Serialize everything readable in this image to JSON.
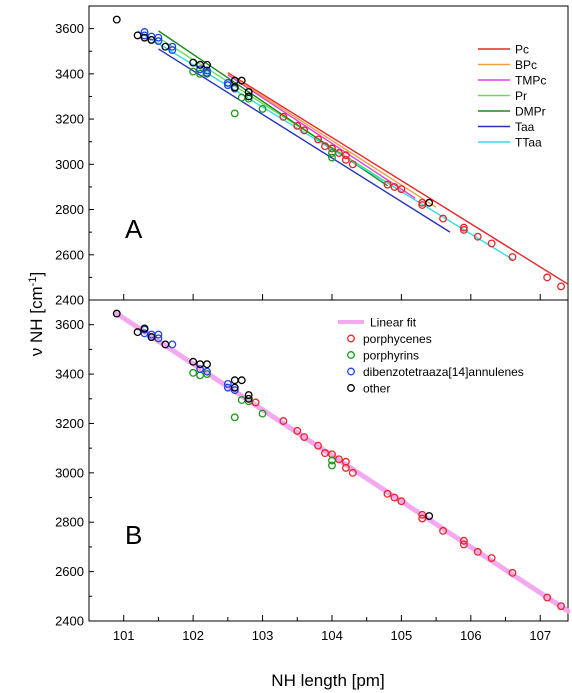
{
  "chart_data": [
    {
      "type": "line",
      "panel_label": "A",
      "xlim": [
        100.5,
        107.4
      ],
      "ylim": [
        2400,
        3700
      ],
      "grid": false,
      "legend_position": "top-right",
      "series": [
        {
          "name": "Pc",
          "color": "#e8262a",
          "x": [
            102.5,
            107.4
          ],
          "y": [
            3405,
            2470
          ]
        },
        {
          "name": "BPc",
          "color": "#f5a040",
          "x": [
            102.5,
            105.5
          ],
          "y": [
            3400,
            2810
          ]
        },
        {
          "name": "TMPc",
          "color": "#e040e0",
          "x": [
            102.5,
            105.2
          ],
          "y": [
            3395,
            2850
          ]
        },
        {
          "name": "Pr",
          "color": "#66dd55",
          "x": [
            101.5,
            105.0
          ],
          "y": [
            3560,
            2880
          ]
        },
        {
          "name": "DMPr",
          "color": "#1a8a1a",
          "x": [
            101.5,
            104.8
          ],
          "y": [
            3590,
            2905
          ]
        },
        {
          "name": "Taa",
          "color": "#2233bb",
          "x": [
            101.5,
            105.7
          ],
          "y": [
            3510,
            2700
          ]
        },
        {
          "name": "TTaa",
          "color": "#33dddd",
          "x": [
            101.2,
            106.6
          ],
          "y": [
            3590,
            2580
          ]
        }
      ],
      "markers": [
        {
          "color": "#e8262a",
          "points": [
            [
              103.3,
              3210
            ],
            [
              103.5,
              3170
            ],
            [
              103.6,
              3150
            ],
            [
              103.8,
              3110
            ],
            [
              103.9,
              3080
            ],
            [
              104.0,
              3070
            ],
            [
              104.1,
              3050
            ],
            [
              104.2,
              3040
            ],
            [
              104.2,
              3020
            ],
            [
              104.3,
              3000
            ],
            [
              104.8,
              2910
            ],
            [
              104.9,
              2900
            ],
            [
              105.0,
              2890
            ],
            [
              105.3,
              2830
            ],
            [
              105.3,
              2820
            ],
            [
              105.6,
              2760
            ],
            [
              105.9,
              2720
            ],
            [
              105.9,
              2710
            ],
            [
              106.1,
              2680
            ],
            [
              106.3,
              2650
            ],
            [
              106.6,
              2590
            ],
            [
              107.1,
              2500
            ],
            [
              107.3,
              2460
            ]
          ]
        },
        {
          "color": "#1a9a1a",
          "points": [
            [
              102.0,
              3410
            ],
            [
              102.1,
              3400
            ],
            [
              102.2,
              3400
            ],
            [
              102.6,
              3225
            ],
            [
              102.7,
              3295
            ],
            [
              102.8,
              3290
            ],
            [
              103.0,
              3245
            ],
            [
              104.0,
              3050
            ],
            [
              104.0,
              3030
            ]
          ]
        },
        {
          "color": "#2244ee",
          "points": [
            [
              101.3,
              3585
            ],
            [
              101.3,
              3570
            ],
            [
              101.4,
              3565
            ],
            [
              101.4,
              3550
            ],
            [
              101.5,
              3560
            ],
            [
              101.5,
              3545
            ],
            [
              101.7,
              3520
            ],
            [
              101.7,
              3505
            ],
            [
              102.1,
              3420
            ],
            [
              102.2,
              3415
            ],
            [
              102.2,
              3405
            ],
            [
              102.5,
              3360
            ],
            [
              102.5,
              3350
            ],
            [
              102.6,
              3335
            ]
          ]
        },
        {
          "color": "#000000",
          "points": [
            [
              100.9,
              3640
            ],
            [
              101.2,
              3570
            ],
            [
              101.3,
              3560
            ],
            [
              101.4,
              3550
            ],
            [
              101.6,
              3520
            ],
            [
              102.0,
              3450
            ],
            [
              102.1,
              3440
            ],
            [
              102.2,
              3440
            ],
            [
              102.6,
              3370
            ],
            [
              102.7,
              3370
            ],
            [
              102.6,
              3340
            ],
            [
              102.8,
              3320
            ],
            [
              102.8,
              3300
            ],
            [
              105.4,
              2830
            ]
          ]
        }
      ]
    },
    {
      "type": "scatter",
      "panel_label": "B",
      "xlim": [
        100.5,
        107.4
      ],
      "ylim": [
        2400,
        3700
      ],
      "grid": false,
      "legend_position": "top-right",
      "fit": {
        "name": "Linear fit",
        "color": "#f4a8ef",
        "x": [
          100.9,
          107.4
        ],
        "y": [
          3645,
          2440
        ]
      },
      "series": [
        {
          "name": "porphycenes",
          "color": "#e8262a",
          "points": [
            [
              102.9,
              3285
            ],
            [
              103.3,
              3210
            ],
            [
              103.5,
              3170
            ],
            [
              103.6,
              3145
            ],
            [
              103.8,
              3110
            ],
            [
              103.9,
              3080
            ],
            [
              104.0,
              3075
            ],
            [
              104.1,
              3055
            ],
            [
              104.2,
              3045
            ],
            [
              104.2,
              3020
            ],
            [
              104.3,
              3000
            ],
            [
              104.8,
              2915
            ],
            [
              104.9,
              2900
            ],
            [
              105.0,
              2885
            ],
            [
              105.3,
              2830
            ],
            [
              105.3,
              2815
            ],
            [
              105.6,
              2765
            ],
            [
              105.9,
              2725
            ],
            [
              105.9,
              2710
            ],
            [
              106.1,
              2680
            ],
            [
              106.3,
              2655
            ],
            [
              106.6,
              2595
            ],
            [
              107.1,
              2495
            ],
            [
              107.3,
              2460
            ]
          ]
        },
        {
          "name": "porphyrins",
          "color": "#1a9a1a",
          "points": [
            [
              102.0,
              3405
            ],
            [
              102.1,
              3395
            ],
            [
              102.2,
              3400
            ],
            [
              102.6,
              3225
            ],
            [
              102.7,
              3295
            ],
            [
              102.8,
              3290
            ],
            [
              103.0,
              3240
            ],
            [
              104.0,
              3050
            ],
            [
              104.0,
              3030
            ]
          ]
        },
        {
          "name": "dibenzotetraaza[14]annulenes",
          "color": "#2244ee",
          "points": [
            [
              101.3,
              3580
            ],
            [
              101.3,
              3565
            ],
            [
              101.4,
              3560
            ],
            [
              101.4,
              3550
            ],
            [
              101.5,
              3560
            ],
            [
              101.5,
              3545
            ],
            [
              101.7,
              3520
            ],
            [
              102.1,
              3420
            ],
            [
              102.2,
              3410
            ],
            [
              102.5,
              3360
            ],
            [
              102.5,
              3345
            ],
            [
              102.6,
              3335
            ]
          ]
        },
        {
          "name": "other",
          "color": "#000000",
          "points": [
            [
              100.9,
              3645
            ],
            [
              101.2,
              3570
            ],
            [
              101.3,
              3585
            ],
            [
              101.4,
              3550
            ],
            [
              101.6,
              3520
            ],
            [
              102.0,
              3450
            ],
            [
              102.1,
              3440
            ],
            [
              102.2,
              3440
            ],
            [
              102.6,
              3375
            ],
            [
              102.7,
              3375
            ],
            [
              102.6,
              3345
            ],
            [
              102.8,
              3315
            ],
            [
              102.8,
              3300
            ],
            [
              105.4,
              2825
            ]
          ]
        }
      ]
    }
  ],
  "axes": {
    "x_ticks": [
      "101",
      "102",
      "103",
      "104",
      "105",
      "106",
      "107"
    ],
    "x_values": [
      101,
      102,
      103,
      104,
      105,
      106,
      107
    ],
    "y_ticks": [
      "2400",
      "2600",
      "2800",
      "3000",
      "3200",
      "3400",
      "3600"
    ],
    "y_values": [
      2400,
      2600,
      2800,
      3000,
      3200,
      3400,
      3600
    ],
    "xlabel": "NH length [pm]",
    "ylabel_main": "ν NH [cm",
    "ylabel_sup": "-1",
    "ylabel_end": "]"
  }
}
